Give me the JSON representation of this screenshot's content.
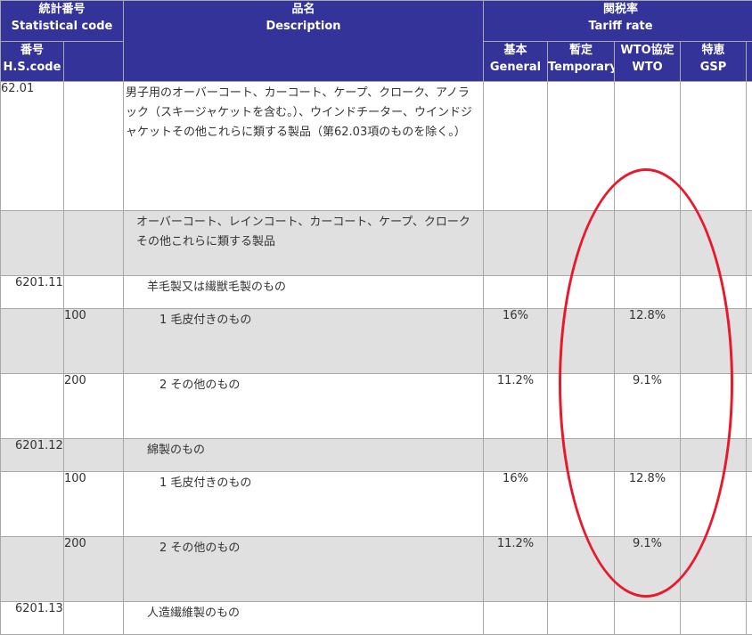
{
  "header": {
    "stat_code_jp": "統計番号",
    "stat_code_en": "Statistical code",
    "hs_jp": "番号",
    "hs_en": "H.S.code",
    "desc_jp": "品名",
    "desc_en": "Description",
    "tariff_jp": "関税率",
    "tariff_en": "Tariff rate",
    "general_jp": "基本",
    "general_en": "General",
    "temporary_jp": "暫定",
    "temporary_en": "Temporary",
    "wto_jp": "WTO協定",
    "wto_en": "WTO",
    "gsp_jp": "特恵",
    "gsp_en": "GSP"
  },
  "rows": [
    {
      "hs": "62.01",
      "stat": "",
      "desc": "男子用のオーバーコート、カーコート、ケープ、クローク、アノラック（スキージャケットを含む。）、ウインドチーター、ウインドジャケットその他これらに類する製品（第62.03項のものを除く。）",
      "general": "",
      "temporary": "",
      "wto": "",
      "gsp": ""
    },
    {
      "hs": "",
      "stat": "",
      "desc": "オーバーコート、レインコート、カーコート、ケープ、クロークその他これらに類する製品",
      "general": "",
      "temporary": "",
      "wto": "",
      "gsp": ""
    },
    {
      "hs": "6201.11",
      "stat": "",
      "desc": "羊毛製又は繊獣毛製のもの",
      "general": "",
      "temporary": "",
      "wto": "",
      "gsp": ""
    },
    {
      "hs": "",
      "stat": "100",
      "desc": "1 毛皮付きのもの",
      "general": "16%",
      "temporary": "",
      "wto": "12.8%",
      "gsp": ""
    },
    {
      "hs": "",
      "stat": "200",
      "desc": "2 その他のもの",
      "general": "11.2%",
      "temporary": "",
      "wto": "9.1%",
      "gsp": ""
    },
    {
      "hs": "6201.12",
      "stat": "",
      "desc": "綿製のもの",
      "general": "",
      "temporary": "",
      "wto": "",
      "gsp": ""
    },
    {
      "hs": "",
      "stat": "100",
      "desc": "1 毛皮付きのもの",
      "general": "16%",
      "temporary": "",
      "wto": "12.8%",
      "gsp": ""
    },
    {
      "hs": "",
      "stat": "200",
      "desc": "2 その他のもの",
      "general": "11.2%",
      "temporary": "",
      "wto": "9.1%",
      "gsp": ""
    },
    {
      "hs": "6201.13",
      "stat": "",
      "desc": "人造繊維製のもの",
      "general": "",
      "temporary": "",
      "wto": "",
      "gsp": ""
    }
  ],
  "colors": {
    "header_bg": "#33339a",
    "row_gray": "#e0e0e0",
    "highlight_circle": "#e8192c"
  }
}
